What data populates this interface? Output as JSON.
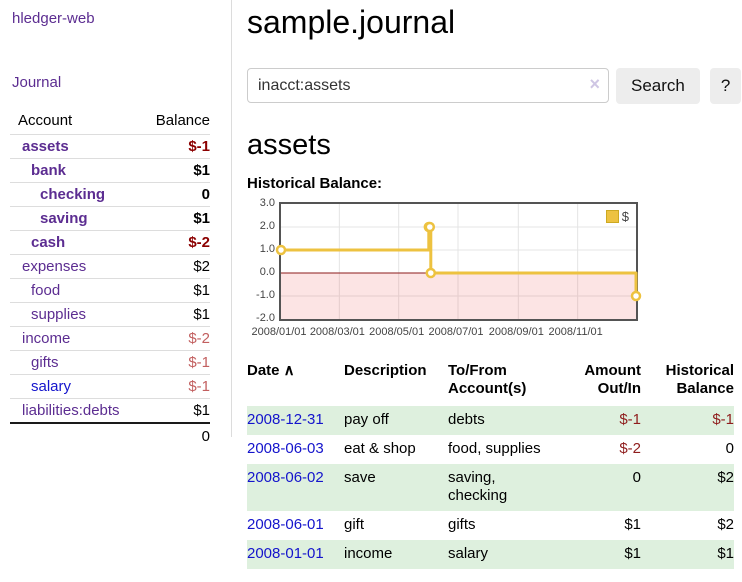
{
  "app": {
    "title": "hledger-web",
    "nav_journal": "Journal"
  },
  "colors": {
    "accent_purple": "#5c2d91",
    "link_blue": "#1414cc",
    "negative_strong": "#8b0000",
    "negative_soft": "#c25f5f",
    "table_negative": "#8f1d1d",
    "stripe_green": "#def0de",
    "series_yellow": "#edc240",
    "zero_line_red": "#8b1a1a",
    "negative_area_pink": "rgba(235,90,90,0.16)",
    "grid_gray": "#e4e4e4",
    "plot_border": "#545454"
  },
  "sidebar": {
    "header": {
      "account": "Account",
      "balance": "Balance"
    },
    "accounts": [
      {
        "name": "assets",
        "level": 1,
        "bold": true,
        "balance": "$-1",
        "negative": true,
        "blue_link": false
      },
      {
        "name": "bank",
        "level": 2,
        "bold": true,
        "balance": "$1",
        "negative": false,
        "blue_link": false
      },
      {
        "name": "checking",
        "level": 3,
        "bold": true,
        "balance": "0",
        "negative": false,
        "blue_link": false
      },
      {
        "name": "saving",
        "level": 3,
        "bold": true,
        "balance": "$1",
        "negative": false,
        "blue_link": false
      },
      {
        "name": "cash",
        "level": 2,
        "bold": true,
        "balance": "$-2",
        "negative": true,
        "blue_link": false
      },
      {
        "name": "expenses",
        "level": 1,
        "bold": false,
        "balance": "$2",
        "negative": false,
        "blue_link": false
      },
      {
        "name": "food",
        "level": 2,
        "bold": false,
        "balance": "$1",
        "negative": false,
        "blue_link": false
      },
      {
        "name": "supplies",
        "level": 2,
        "bold": false,
        "balance": "$1",
        "negative": false,
        "blue_link": false
      },
      {
        "name": "income",
        "level": 1,
        "bold": false,
        "balance": "$-2",
        "negative": true,
        "blue_link": false
      },
      {
        "name": "gifts",
        "level": 2,
        "bold": false,
        "balance": "$-1",
        "negative": true,
        "blue_link": false
      },
      {
        "name": "salary",
        "level": 2,
        "bold": false,
        "balance": "$-1",
        "negative": true,
        "blue_link": true
      },
      {
        "name": "liabilities:debts",
        "level": 1,
        "bold": false,
        "balance": "$1",
        "negative": false,
        "blue_link": false
      }
    ],
    "total": "0"
  },
  "main": {
    "title": "sample.journal",
    "search": {
      "value": "inacct:assets",
      "clear_icon": "×",
      "button_label": "Search",
      "help_label": "?"
    },
    "account_heading": "assets",
    "chart_heading": "Historical Balance:"
  },
  "chart_data": {
    "type": "line",
    "step": true,
    "title": "Historical Balance:",
    "legend": "$",
    "legend_position": "top-right",
    "grid": true,
    "ylim": [
      -2,
      3
    ],
    "xrange": [
      "2008-01-01",
      "2008-12-31"
    ],
    "yticks": [
      {
        "v": 3,
        "label": "3.0"
      },
      {
        "v": 2,
        "label": "2.0"
      },
      {
        "v": 1,
        "label": "1.0"
      },
      {
        "v": 0,
        "label": "0.0"
      },
      {
        "v": -1,
        "label": "-1.0"
      },
      {
        "v": -2,
        "label": "-2.0"
      }
    ],
    "xticks": [
      {
        "date": "2008-01-01",
        "label": "2008/01/01"
      },
      {
        "date": "2008-03-01",
        "label": "2008/03/01"
      },
      {
        "date": "2008-05-01",
        "label": "2008/05/01"
      },
      {
        "date": "2008-07-01",
        "label": "2008/07/01"
      },
      {
        "date": "2008-09-01",
        "label": "2008/09/01"
      },
      {
        "date": "2008-11-01",
        "label": "2008/11/01"
      }
    ],
    "series": [
      {
        "name": "$",
        "points": [
          {
            "date": "2008-01-01",
            "value": 1
          },
          {
            "date": "2008-06-01",
            "value": 2
          },
          {
            "date": "2008-06-02",
            "value": 2
          },
          {
            "date": "2008-06-03",
            "value": 0
          },
          {
            "date": "2008-12-31",
            "value": -1
          }
        ]
      }
    ]
  },
  "register": {
    "columns": [
      {
        "label": "Date",
        "sorted": "asc",
        "arrow": "∧"
      },
      {
        "label": "Description"
      },
      {
        "label": "To/From Account(s)"
      },
      {
        "label": "Amount Out/In",
        "align": "right"
      },
      {
        "label": "Historical Balance",
        "align": "right"
      }
    ],
    "rows": [
      {
        "date": "2008-12-31",
        "description": "pay off",
        "accounts": "debts",
        "amount": "$-1",
        "amount_neg": true,
        "balance": "$-1",
        "balance_neg": true
      },
      {
        "date": "2008-06-03",
        "description": "eat & shop",
        "accounts": "food, supplies",
        "amount": "$-2",
        "amount_neg": true,
        "balance": "0",
        "balance_neg": false
      },
      {
        "date": "2008-06-02",
        "description": "save",
        "accounts": "saving,\nchecking",
        "amount": "0",
        "amount_neg": false,
        "balance": "$2",
        "balance_neg": false
      },
      {
        "date": "2008-06-01",
        "description": "gift",
        "accounts": "gifts",
        "amount": "$1",
        "amount_neg": false,
        "balance": "$2",
        "balance_neg": false
      },
      {
        "date": "2008-01-01",
        "description": "income",
        "accounts": "salary",
        "amount": "$1",
        "amount_neg": false,
        "balance": "$1",
        "balance_neg": false
      }
    ]
  }
}
